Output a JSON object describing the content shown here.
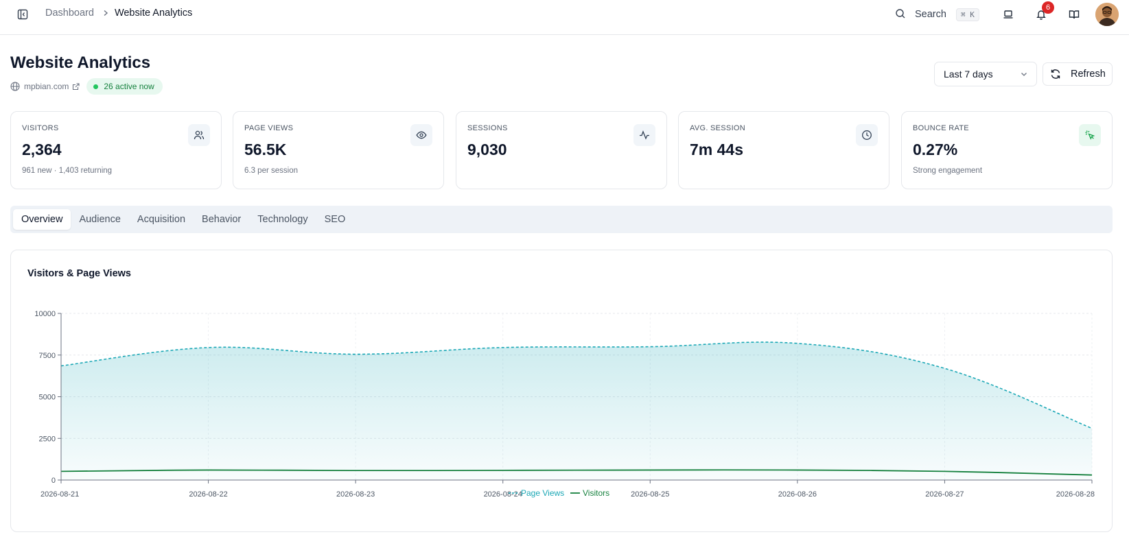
{
  "topbar": {
    "breadcrumb": {
      "parent": "Dashboard",
      "current": "Website Analytics"
    },
    "search": {
      "label": "Search",
      "shortcut": "⌘ K"
    },
    "notifications_count": "6"
  },
  "header": {
    "title": "Website Analytics",
    "site": "mpbian.com",
    "active_badge": "26 active now",
    "range": "Last 7 days",
    "refresh_label": "Refresh"
  },
  "kpis": [
    {
      "label": "VISITORS",
      "value": "2,364",
      "sub": "961 new · 1,403 returning",
      "icon": "users-icon"
    },
    {
      "label": "PAGE VIEWS",
      "value": "56.5K",
      "sub": "6.3 per session",
      "icon": "eye-icon"
    },
    {
      "label": "SESSIONS",
      "value": "9,030",
      "sub": "",
      "icon": "activity-icon"
    },
    {
      "label": "AVG. SESSION",
      "value": "7m 44s",
      "sub": "",
      "icon": "clock-icon"
    },
    {
      "label": "BOUNCE RATE",
      "value": "0.27%",
      "sub": "Strong engagement",
      "icon": "pointer-click-icon"
    }
  ],
  "tabs": [
    {
      "label": "Overview",
      "active": true
    },
    {
      "label": "Audience"
    },
    {
      "label": "Acquisition"
    },
    {
      "label": "Behavior"
    },
    {
      "label": "Technology"
    },
    {
      "label": "SEO"
    }
  ],
  "colors": {
    "page_views": "#1aa7b5",
    "visitors": "#15803d",
    "accent_green": "#22c55e",
    "badge_red": "#dc2626"
  },
  "chart_data": {
    "type": "area",
    "title": "Visitors & Page Views",
    "x": [
      "2026-08-21",
      "2026-08-22",
      "2026-08-23",
      "2026-08-24",
      "2026-08-25",
      "2026-08-26",
      "2026-08-27",
      "2026-08-28"
    ],
    "ylim": [
      0,
      10000
    ],
    "yticks": [
      0,
      2500,
      5000,
      7500,
      10000
    ],
    "grid": true,
    "legend": "bottom",
    "series": [
      {
        "name": "Page Views",
        "values": [
          6850,
          7950,
          7550,
          7950,
          8000,
          8200,
          6700,
          3100
        ],
        "style": "dashed",
        "fill": true
      },
      {
        "name": "Visitors",
        "values": [
          520,
          600,
          570,
          580,
          600,
          600,
          520,
          300
        ],
        "style": "solid",
        "fill": false
      }
    ]
  }
}
